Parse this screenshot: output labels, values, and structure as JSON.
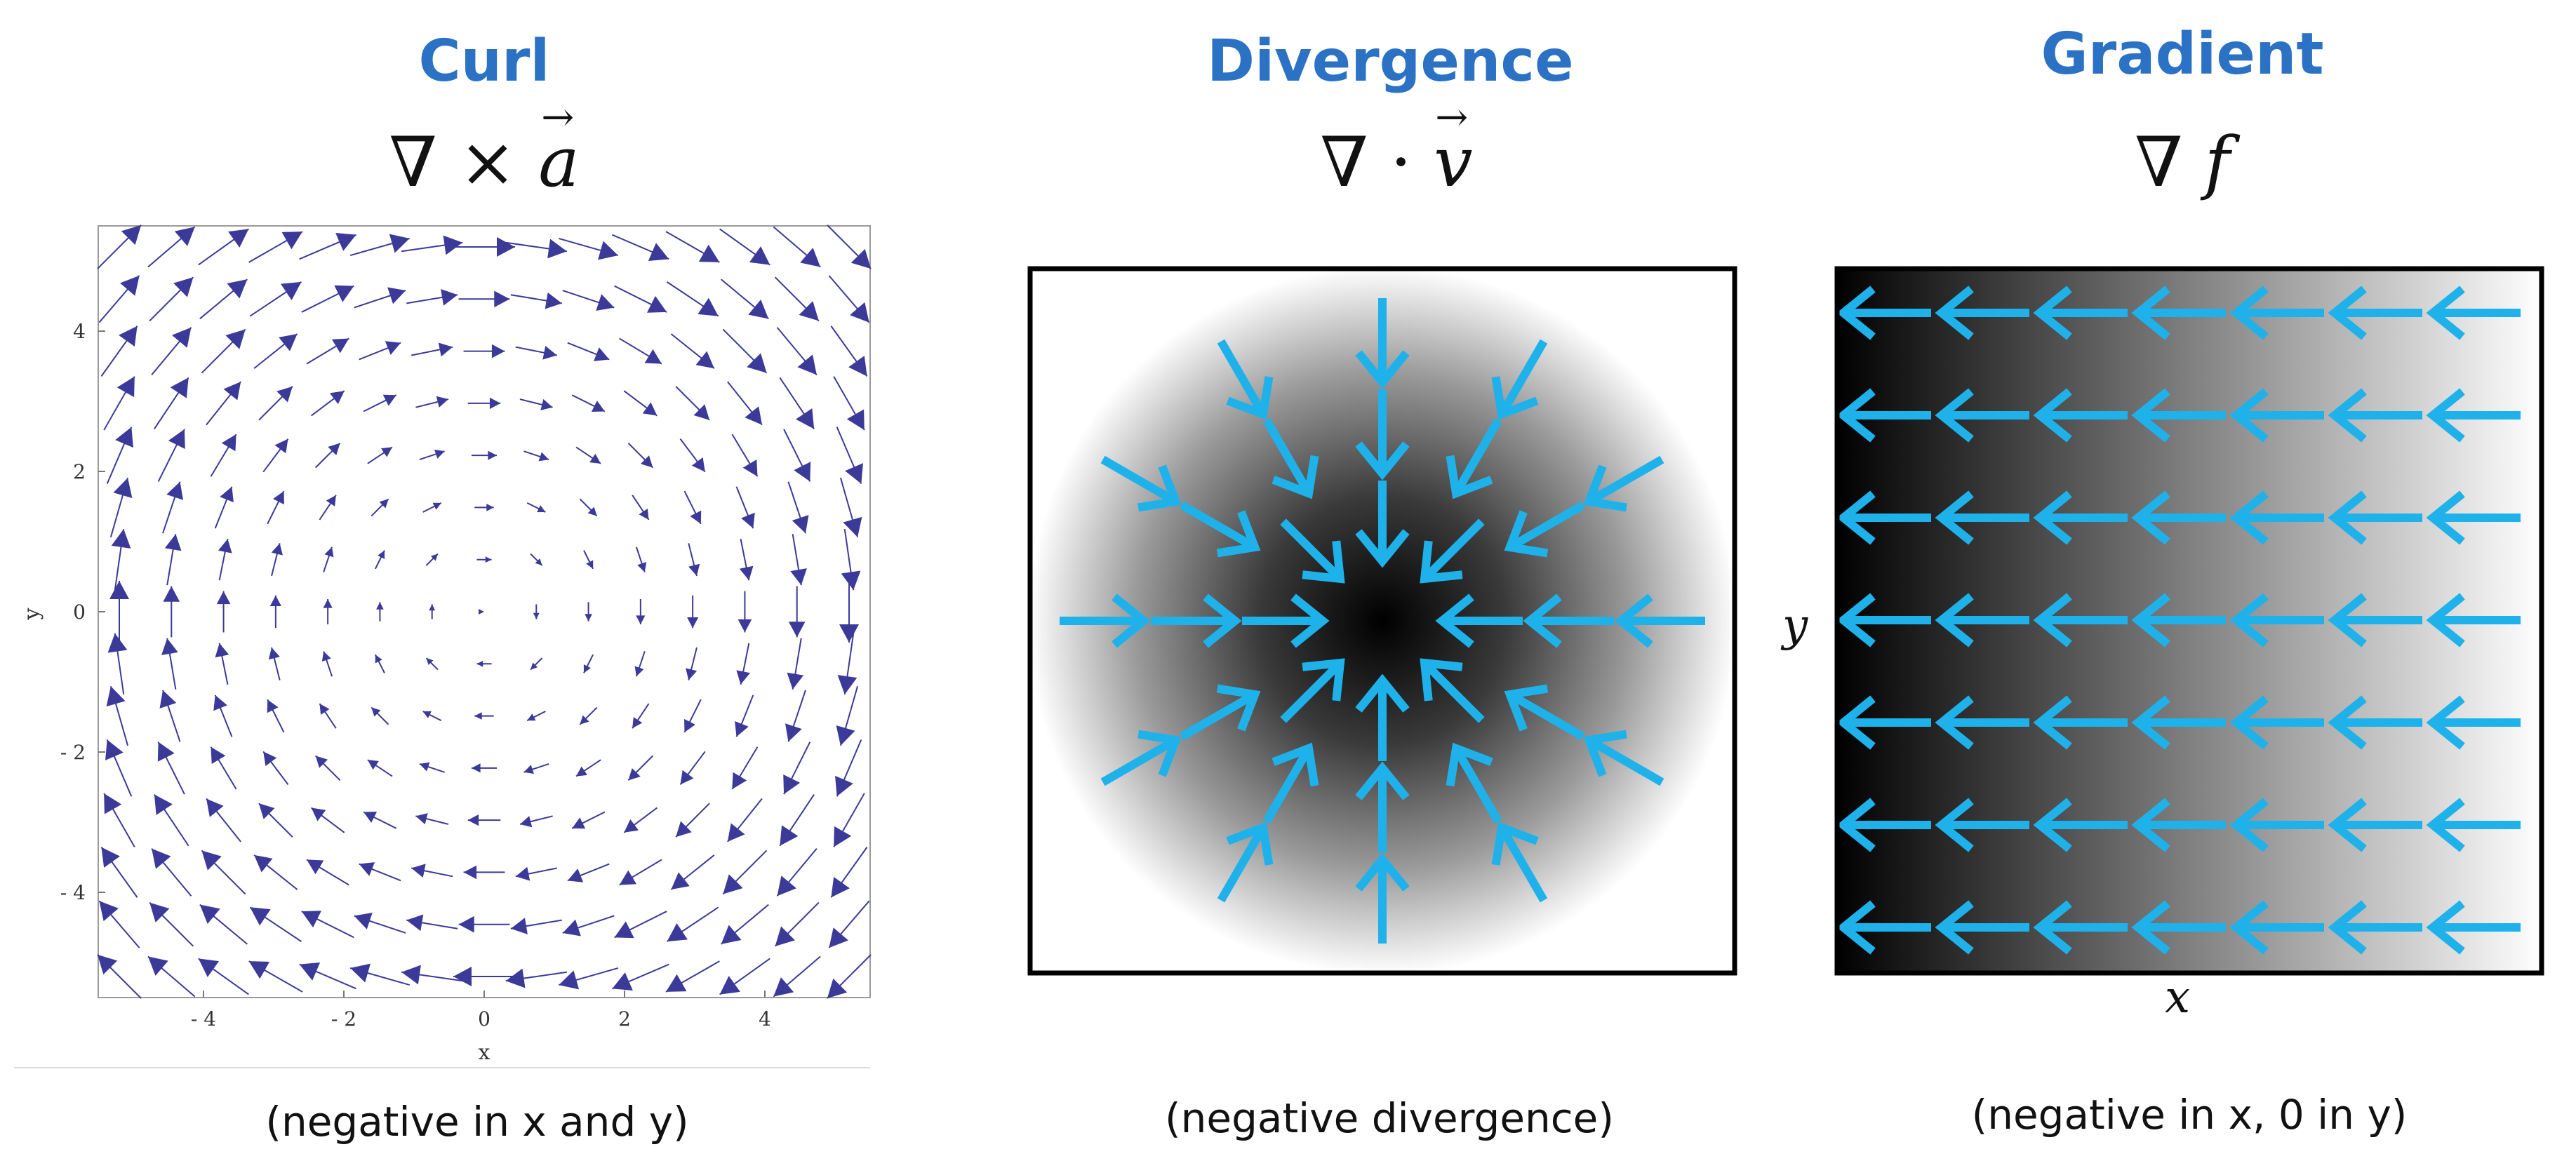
{
  "panels": {
    "curl": {
      "title": "Curl",
      "formula_op": "∇ ×",
      "formula_var": "a",
      "caption": "(negative in x and y)",
      "axis": {
        "xlabel": "x",
        "ylabel": "y",
        "xticks": [
          "- 4",
          "- 2",
          "0",
          "2",
          "4"
        ],
        "yticks": [
          "4",
          "2",
          "0",
          "- 2",
          "- 4"
        ]
      }
    },
    "divergence": {
      "title": "Divergence",
      "formula_op": "∇ ·",
      "formula_var": "v",
      "caption": "(negative divergence)"
    },
    "gradient": {
      "title": "Gradient",
      "formula_op": "∇",
      "formula_var": "f",
      "caption": "(negative in x, 0 in y)",
      "xlabel": "x",
      "ylabel": "y"
    }
  },
  "colors": {
    "title": "#2b72c4",
    "curl_arrow": "#3b3a99",
    "field_arrow": "#1fb2ea"
  }
}
